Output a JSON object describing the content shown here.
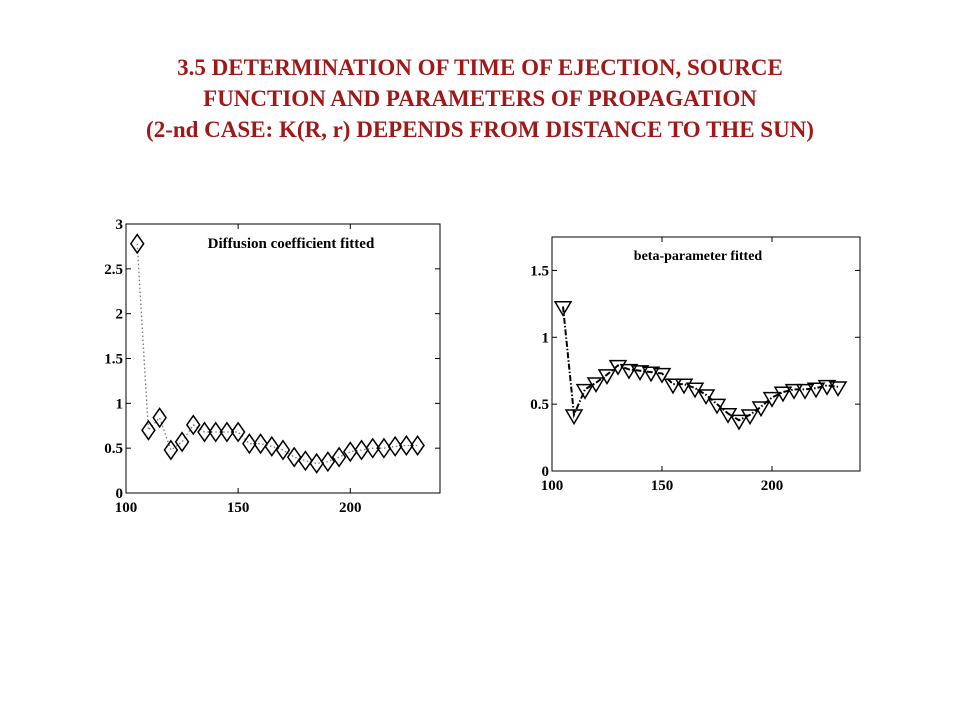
{
  "slide": {
    "title_line1": "3.5 DETERMINATION OF TIME OF EJECTION, SOURCE",
    "title_line2": "FUNCTION AND PARAMETERS OF PROPAGATION",
    "title_line3": "(2-nd CASE: K(R, r) DEPENDS FROM DISTANCE TO THE SUN)",
    "title_color": "#a01818"
  },
  "chart_data": [
    {
      "type": "line",
      "title": "Diffusion coefficient fitted",
      "marker": "diamond",
      "line_style": "dotted",
      "xlim": [
        100,
        240
      ],
      "ylim": [
        0,
        3
      ],
      "xticks": [
        100,
        150,
        200
      ],
      "yticks": [
        0,
        0.5,
        1,
        1.5,
        2,
        2.5,
        3
      ],
      "xtick_labels": [
        "100",
        "150",
        "200"
      ],
      "ytick_labels": [
        "0",
        "0.5",
        "1",
        "1.5",
        "2",
        "2.5",
        "3"
      ],
      "x": [
        105,
        110,
        115,
        120,
        125,
        130,
        135,
        140,
        145,
        150,
        155,
        160,
        165,
        170,
        175,
        180,
        185,
        190,
        195,
        200,
        205,
        210,
        215,
        220,
        225,
        230
      ],
      "y": [
        2.78,
        0.7,
        0.84,
        0.48,
        0.57,
        0.76,
        0.68,
        0.68,
        0.68,
        0.68,
        0.55,
        0.55,
        0.52,
        0.48,
        0.4,
        0.36,
        0.33,
        0.35,
        0.4,
        0.46,
        0.48,
        0.5,
        0.5,
        0.52,
        0.53,
        0.53
      ]
    },
    {
      "type": "line",
      "title": "beta-parameter fitted",
      "marker": "triangle-down",
      "line_style": "dash-dot",
      "xlim": [
        100,
        240
      ],
      "ylim": [
        0,
        1.75
      ],
      "xticks": [
        100,
        150,
        200
      ],
      "yticks": [
        0,
        0.5,
        1,
        1.5
      ],
      "xtick_labels": [
        "100",
        "150",
        "200"
      ],
      "ytick_labels": [
        "0",
        "0.5",
        "1",
        "1.5"
      ],
      "x": [
        105,
        110,
        115,
        120,
        125,
        130,
        135,
        140,
        145,
        150,
        155,
        160,
        165,
        170,
        175,
        180,
        185,
        190,
        195,
        200,
        205,
        210,
        215,
        220,
        225,
        230
      ],
      "y": [
        1.23,
        0.42,
        0.61,
        0.66,
        0.72,
        0.79,
        0.76,
        0.75,
        0.74,
        0.73,
        0.65,
        0.65,
        0.62,
        0.57,
        0.5,
        0.43,
        0.38,
        0.42,
        0.48,
        0.55,
        0.59,
        0.61,
        0.61,
        0.62,
        0.64,
        0.63
      ]
    }
  ]
}
